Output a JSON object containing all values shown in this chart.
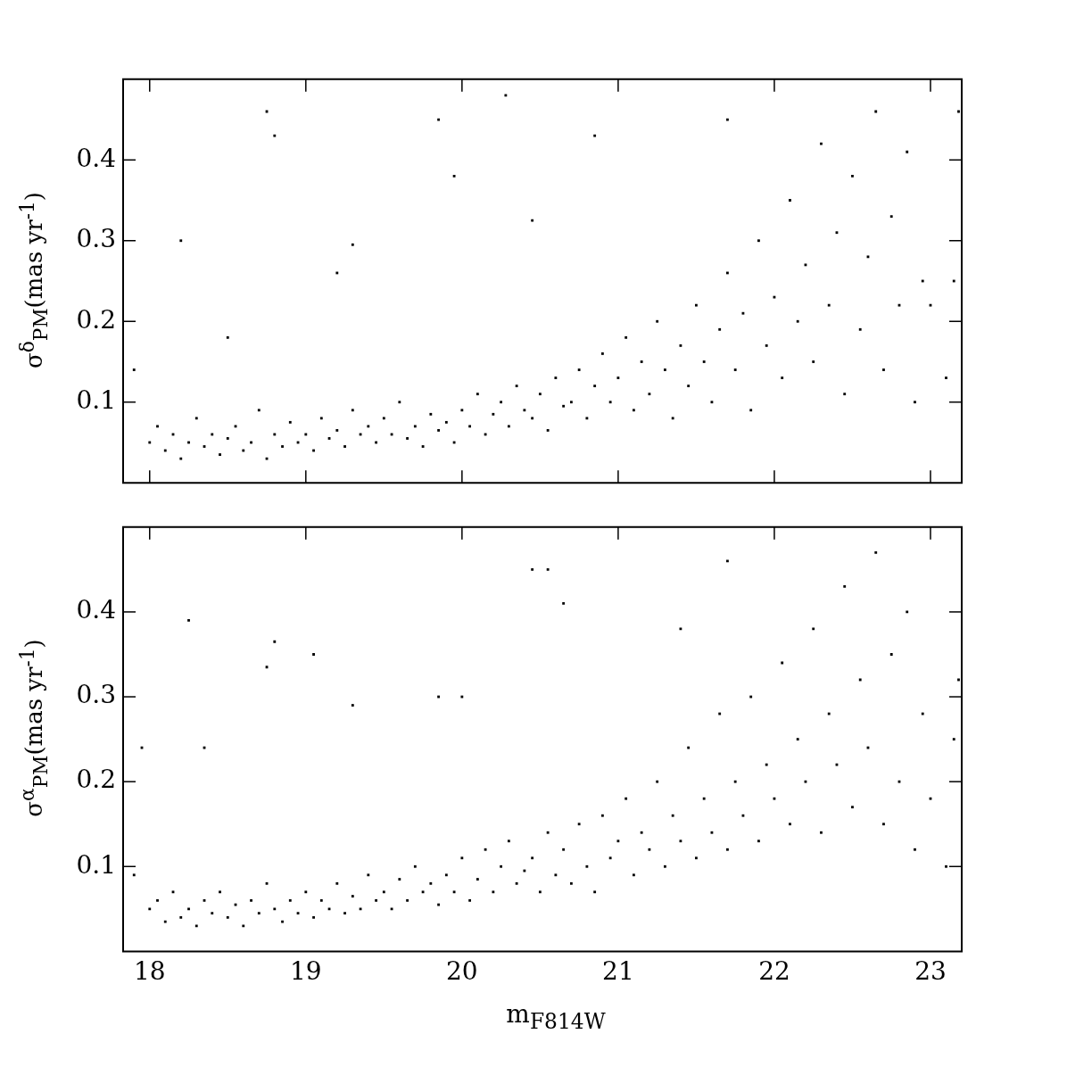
{
  "chart_data": [
    {
      "type": "scatter",
      "ylabel": "σ$^{δ}$$_{PM}$(mas yr$^{-1}$)",
      "xlim": [
        17.83,
        23.2
      ],
      "xticks": [
        18,
        19,
        20,
        21,
        22,
        23
      ],
      "ylim": [
        0,
        0.5
      ],
      "yticks": [
        0.1,
        0.2,
        0.3,
        0.4
      ],
      "tick_labels": "y",
      "marker": "square",
      "grid": false,
      "legend": false,
      "series": [
        {
          "color": "#000000",
          "x": [
            17.9,
            18.0,
            18.05,
            18.1,
            18.15,
            18.2,
            18.25,
            18.3,
            18.35,
            18.4,
            18.45,
            18.5,
            18.55,
            18.6,
            18.65,
            18.7,
            18.75,
            18.8,
            18.85,
            18.9,
            18.95,
            19.0,
            19.05,
            19.1,
            19.15,
            19.2,
            19.25,
            19.3,
            19.35,
            19.4,
            19.45,
            19.5,
            19.55,
            19.6,
            19.65,
            19.7,
            19.75,
            19.8,
            19.85,
            19.9,
            19.95,
            20.0,
            20.05,
            20.1,
            20.15,
            20.2,
            20.25,
            20.3,
            20.35,
            20.4,
            20.45,
            20.5,
            20.55,
            20.6,
            20.65,
            20.7,
            20.75,
            20.8,
            20.85,
            20.9,
            20.95,
            21.0,
            21.05,
            21.1,
            21.15,
            21.2,
            21.25,
            21.3,
            21.35,
            21.4,
            21.45,
            21.5,
            21.55,
            21.6,
            21.65,
            21.7,
            21.75,
            21.8,
            21.85,
            21.9,
            21.95,
            22.0,
            22.05,
            22.1,
            22.15,
            22.2,
            22.25,
            22.3,
            22.35,
            22.4,
            22.45,
            22.5,
            22.55,
            22.6,
            22.65,
            22.7,
            22.75,
            22.8,
            22.85,
            22.9,
            22.95,
            23.0,
            23.1,
            23.15,
            23.18,
            18.2,
            18.75,
            18.8,
            19.3,
            19.85,
            19.95,
            20.45,
            20.85,
            18.5,
            19.2,
            20.28,
            21.7
          ],
          "values": [
            0.14,
            0.05,
            0.07,
            0.04,
            0.06,
            0.03,
            0.05,
            0.08,
            0.045,
            0.06,
            0.035,
            0.055,
            0.07,
            0.04,
            0.05,
            0.09,
            0.03,
            0.06,
            0.045,
            0.075,
            0.05,
            0.06,
            0.04,
            0.08,
            0.055,
            0.065,
            0.045,
            0.09,
            0.06,
            0.07,
            0.05,
            0.08,
            0.06,
            0.1,
            0.055,
            0.07,
            0.045,
            0.085,
            0.065,
            0.075,
            0.05,
            0.09,
            0.07,
            0.11,
            0.06,
            0.085,
            0.1,
            0.07,
            0.12,
            0.09,
            0.08,
            0.11,
            0.065,
            0.13,
            0.095,
            0.1,
            0.14,
            0.08,
            0.12,
            0.16,
            0.1,
            0.13,
            0.18,
            0.09,
            0.15,
            0.11,
            0.2,
            0.14,
            0.08,
            0.17,
            0.12,
            0.22,
            0.15,
            0.1,
            0.19,
            0.26,
            0.14,
            0.21,
            0.09,
            0.3,
            0.17,
            0.23,
            0.13,
            0.35,
            0.2,
            0.27,
            0.15,
            0.42,
            0.22,
            0.31,
            0.11,
            0.38,
            0.19,
            0.28,
            0.46,
            0.14,
            0.33,
            0.22,
            0.41,
            0.1,
            0.25,
            0.22,
            0.13,
            0.25,
            0.46,
            0.3,
            0.46,
            0.43,
            0.295,
            0.45,
            0.38,
            0.325,
            0.43,
            0.18,
            0.26,
            0.48,
            0.45
          ]
        }
      ]
    },
    {
      "type": "scatter",
      "xlabel": "m$_{F814W}$",
      "ylabel": "σ$^{α}$$_{PM}$(mas yr$^{-1}$)",
      "xlim": [
        17.83,
        23.2
      ],
      "xticks": [
        18,
        19,
        20,
        21,
        22,
        23
      ],
      "ylim": [
        0,
        0.5
      ],
      "yticks": [
        0.1,
        0.2,
        0.3,
        0.4
      ],
      "marker": "square",
      "grid": false,
      "legend": false,
      "series": [
        {
          "color": "#000000",
          "x": [
            17.9,
            18.0,
            18.05,
            18.1,
            18.15,
            18.2,
            18.25,
            18.3,
            18.35,
            18.4,
            18.45,
            18.5,
            18.55,
            18.6,
            18.65,
            18.7,
            18.75,
            18.8,
            18.85,
            18.9,
            18.95,
            19.0,
            19.05,
            19.1,
            19.15,
            19.2,
            19.25,
            19.3,
            19.35,
            19.4,
            19.45,
            19.5,
            19.55,
            19.6,
            19.65,
            19.7,
            19.75,
            19.8,
            19.85,
            19.9,
            19.95,
            20.0,
            20.05,
            20.1,
            20.15,
            20.2,
            20.25,
            20.3,
            20.35,
            20.4,
            20.45,
            20.5,
            20.55,
            20.6,
            20.65,
            20.7,
            20.75,
            20.8,
            20.85,
            20.9,
            20.95,
            21.0,
            21.05,
            21.1,
            21.15,
            21.2,
            21.25,
            21.3,
            21.35,
            21.4,
            21.45,
            21.5,
            21.55,
            21.6,
            21.65,
            21.7,
            21.75,
            21.8,
            21.85,
            21.9,
            21.95,
            22.0,
            22.05,
            22.1,
            22.15,
            22.2,
            22.25,
            22.3,
            22.35,
            22.4,
            22.45,
            22.5,
            22.55,
            22.6,
            22.65,
            22.7,
            22.75,
            22.8,
            22.85,
            22.9,
            22.95,
            23.0,
            23.1,
            23.15,
            23.18,
            18.25,
            18.75,
            18.8,
            19.05,
            19.3,
            20.45,
            20.55,
            20.65,
            19.85,
            20.0,
            17.95,
            18.35,
            21.4,
            21.7
          ],
          "values": [
            0.09,
            0.05,
            0.06,
            0.035,
            0.07,
            0.04,
            0.05,
            0.03,
            0.06,
            0.045,
            0.07,
            0.04,
            0.055,
            0.03,
            0.06,
            0.045,
            0.08,
            0.05,
            0.035,
            0.06,
            0.045,
            0.07,
            0.04,
            0.06,
            0.05,
            0.08,
            0.045,
            0.065,
            0.05,
            0.09,
            0.06,
            0.07,
            0.05,
            0.085,
            0.06,
            0.1,
            0.07,
            0.08,
            0.055,
            0.09,
            0.07,
            0.11,
            0.06,
            0.085,
            0.12,
            0.07,
            0.1,
            0.13,
            0.08,
            0.095,
            0.11,
            0.07,
            0.14,
            0.09,
            0.12,
            0.08,
            0.15,
            0.1,
            0.07,
            0.16,
            0.11,
            0.13,
            0.18,
            0.09,
            0.14,
            0.12,
            0.2,
            0.1,
            0.16,
            0.13,
            0.24,
            0.11,
            0.18,
            0.14,
            0.28,
            0.12,
            0.2,
            0.16,
            0.3,
            0.13,
            0.22,
            0.18,
            0.34,
            0.15,
            0.25,
            0.2,
            0.38,
            0.14,
            0.28,
            0.22,
            0.43,
            0.17,
            0.32,
            0.24,
            0.47,
            0.15,
            0.35,
            0.2,
            0.4,
            0.12,
            0.28,
            0.18,
            0.1,
            0.25,
            0.32,
            0.39,
            0.335,
            0.365,
            0.35,
            0.29,
            0.45,
            0.45,
            0.41,
            0.3,
            0.3,
            0.24,
            0.24,
            0.38,
            0.46
          ]
        }
      ]
    }
  ]
}
